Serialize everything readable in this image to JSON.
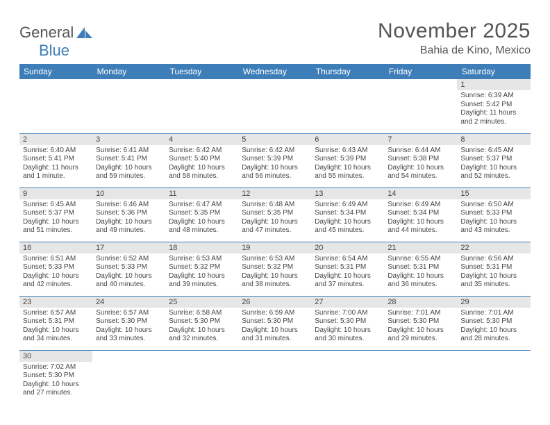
{
  "brand": {
    "general": "General",
    "blue": "Blue"
  },
  "title": "November 2025",
  "location": "Bahia de Kino, Mexico",
  "header_color": "#3d7db8",
  "dayname_bg": "#e6e6e6",
  "weekdays": [
    "Sunday",
    "Monday",
    "Tuesday",
    "Wednesday",
    "Thursday",
    "Friday",
    "Saturday"
  ],
  "weeks": [
    [
      null,
      null,
      null,
      null,
      null,
      null,
      {
        "n": "1",
        "sunrise": "Sunrise: 6:39 AM",
        "sunset": "Sunset: 5:42 PM",
        "daylight1": "Daylight: 11 hours",
        "daylight2": "and 2 minutes."
      }
    ],
    [
      {
        "n": "2",
        "sunrise": "Sunrise: 6:40 AM",
        "sunset": "Sunset: 5:41 PM",
        "daylight1": "Daylight: 11 hours",
        "daylight2": "and 1 minute."
      },
      {
        "n": "3",
        "sunrise": "Sunrise: 6:41 AM",
        "sunset": "Sunset: 5:41 PM",
        "daylight1": "Daylight: 10 hours",
        "daylight2": "and 59 minutes."
      },
      {
        "n": "4",
        "sunrise": "Sunrise: 6:42 AM",
        "sunset": "Sunset: 5:40 PM",
        "daylight1": "Daylight: 10 hours",
        "daylight2": "and 58 minutes."
      },
      {
        "n": "5",
        "sunrise": "Sunrise: 6:42 AM",
        "sunset": "Sunset: 5:39 PM",
        "daylight1": "Daylight: 10 hours",
        "daylight2": "and 56 minutes."
      },
      {
        "n": "6",
        "sunrise": "Sunrise: 6:43 AM",
        "sunset": "Sunset: 5:39 PM",
        "daylight1": "Daylight: 10 hours",
        "daylight2": "and 55 minutes."
      },
      {
        "n": "7",
        "sunrise": "Sunrise: 6:44 AM",
        "sunset": "Sunset: 5:38 PM",
        "daylight1": "Daylight: 10 hours",
        "daylight2": "and 54 minutes."
      },
      {
        "n": "8",
        "sunrise": "Sunrise: 6:45 AM",
        "sunset": "Sunset: 5:37 PM",
        "daylight1": "Daylight: 10 hours",
        "daylight2": "and 52 minutes."
      }
    ],
    [
      {
        "n": "9",
        "sunrise": "Sunrise: 6:45 AM",
        "sunset": "Sunset: 5:37 PM",
        "daylight1": "Daylight: 10 hours",
        "daylight2": "and 51 minutes."
      },
      {
        "n": "10",
        "sunrise": "Sunrise: 6:46 AM",
        "sunset": "Sunset: 5:36 PM",
        "daylight1": "Daylight: 10 hours",
        "daylight2": "and 49 minutes."
      },
      {
        "n": "11",
        "sunrise": "Sunrise: 6:47 AM",
        "sunset": "Sunset: 5:35 PM",
        "daylight1": "Daylight: 10 hours",
        "daylight2": "and 48 minutes."
      },
      {
        "n": "12",
        "sunrise": "Sunrise: 6:48 AM",
        "sunset": "Sunset: 5:35 PM",
        "daylight1": "Daylight: 10 hours",
        "daylight2": "and 47 minutes."
      },
      {
        "n": "13",
        "sunrise": "Sunrise: 6:49 AM",
        "sunset": "Sunset: 5:34 PM",
        "daylight1": "Daylight: 10 hours",
        "daylight2": "and 45 minutes."
      },
      {
        "n": "14",
        "sunrise": "Sunrise: 6:49 AM",
        "sunset": "Sunset: 5:34 PM",
        "daylight1": "Daylight: 10 hours",
        "daylight2": "and 44 minutes."
      },
      {
        "n": "15",
        "sunrise": "Sunrise: 6:50 AM",
        "sunset": "Sunset: 5:33 PM",
        "daylight1": "Daylight: 10 hours",
        "daylight2": "and 43 minutes."
      }
    ],
    [
      {
        "n": "16",
        "sunrise": "Sunrise: 6:51 AM",
        "sunset": "Sunset: 5:33 PM",
        "daylight1": "Daylight: 10 hours",
        "daylight2": "and 42 minutes."
      },
      {
        "n": "17",
        "sunrise": "Sunrise: 6:52 AM",
        "sunset": "Sunset: 5:33 PM",
        "daylight1": "Daylight: 10 hours",
        "daylight2": "and 40 minutes."
      },
      {
        "n": "18",
        "sunrise": "Sunrise: 6:53 AM",
        "sunset": "Sunset: 5:32 PM",
        "daylight1": "Daylight: 10 hours",
        "daylight2": "and 39 minutes."
      },
      {
        "n": "19",
        "sunrise": "Sunrise: 6:53 AM",
        "sunset": "Sunset: 5:32 PM",
        "daylight1": "Daylight: 10 hours",
        "daylight2": "and 38 minutes."
      },
      {
        "n": "20",
        "sunrise": "Sunrise: 6:54 AM",
        "sunset": "Sunset: 5:31 PM",
        "daylight1": "Daylight: 10 hours",
        "daylight2": "and 37 minutes."
      },
      {
        "n": "21",
        "sunrise": "Sunrise: 6:55 AM",
        "sunset": "Sunset: 5:31 PM",
        "daylight1": "Daylight: 10 hours",
        "daylight2": "and 36 minutes."
      },
      {
        "n": "22",
        "sunrise": "Sunrise: 6:56 AM",
        "sunset": "Sunset: 5:31 PM",
        "daylight1": "Daylight: 10 hours",
        "daylight2": "and 35 minutes."
      }
    ],
    [
      {
        "n": "23",
        "sunrise": "Sunrise: 6:57 AM",
        "sunset": "Sunset: 5:31 PM",
        "daylight1": "Daylight: 10 hours",
        "daylight2": "and 34 minutes."
      },
      {
        "n": "24",
        "sunrise": "Sunrise: 6:57 AM",
        "sunset": "Sunset: 5:30 PM",
        "daylight1": "Daylight: 10 hours",
        "daylight2": "and 33 minutes."
      },
      {
        "n": "25",
        "sunrise": "Sunrise: 6:58 AM",
        "sunset": "Sunset: 5:30 PM",
        "daylight1": "Daylight: 10 hours",
        "daylight2": "and 32 minutes."
      },
      {
        "n": "26",
        "sunrise": "Sunrise: 6:59 AM",
        "sunset": "Sunset: 5:30 PM",
        "daylight1": "Daylight: 10 hours",
        "daylight2": "and 31 minutes."
      },
      {
        "n": "27",
        "sunrise": "Sunrise: 7:00 AM",
        "sunset": "Sunset: 5:30 PM",
        "daylight1": "Daylight: 10 hours",
        "daylight2": "and 30 minutes."
      },
      {
        "n": "28",
        "sunrise": "Sunrise: 7:01 AM",
        "sunset": "Sunset: 5:30 PM",
        "daylight1": "Daylight: 10 hours",
        "daylight2": "and 29 minutes."
      },
      {
        "n": "29",
        "sunrise": "Sunrise: 7:01 AM",
        "sunset": "Sunset: 5:30 PM",
        "daylight1": "Daylight: 10 hours",
        "daylight2": "and 28 minutes."
      }
    ],
    [
      {
        "n": "30",
        "sunrise": "Sunrise: 7:02 AM",
        "sunset": "Sunset: 5:30 PM",
        "daylight1": "Daylight: 10 hours",
        "daylight2": "and 27 minutes."
      },
      null,
      null,
      null,
      null,
      null,
      null
    ]
  ]
}
